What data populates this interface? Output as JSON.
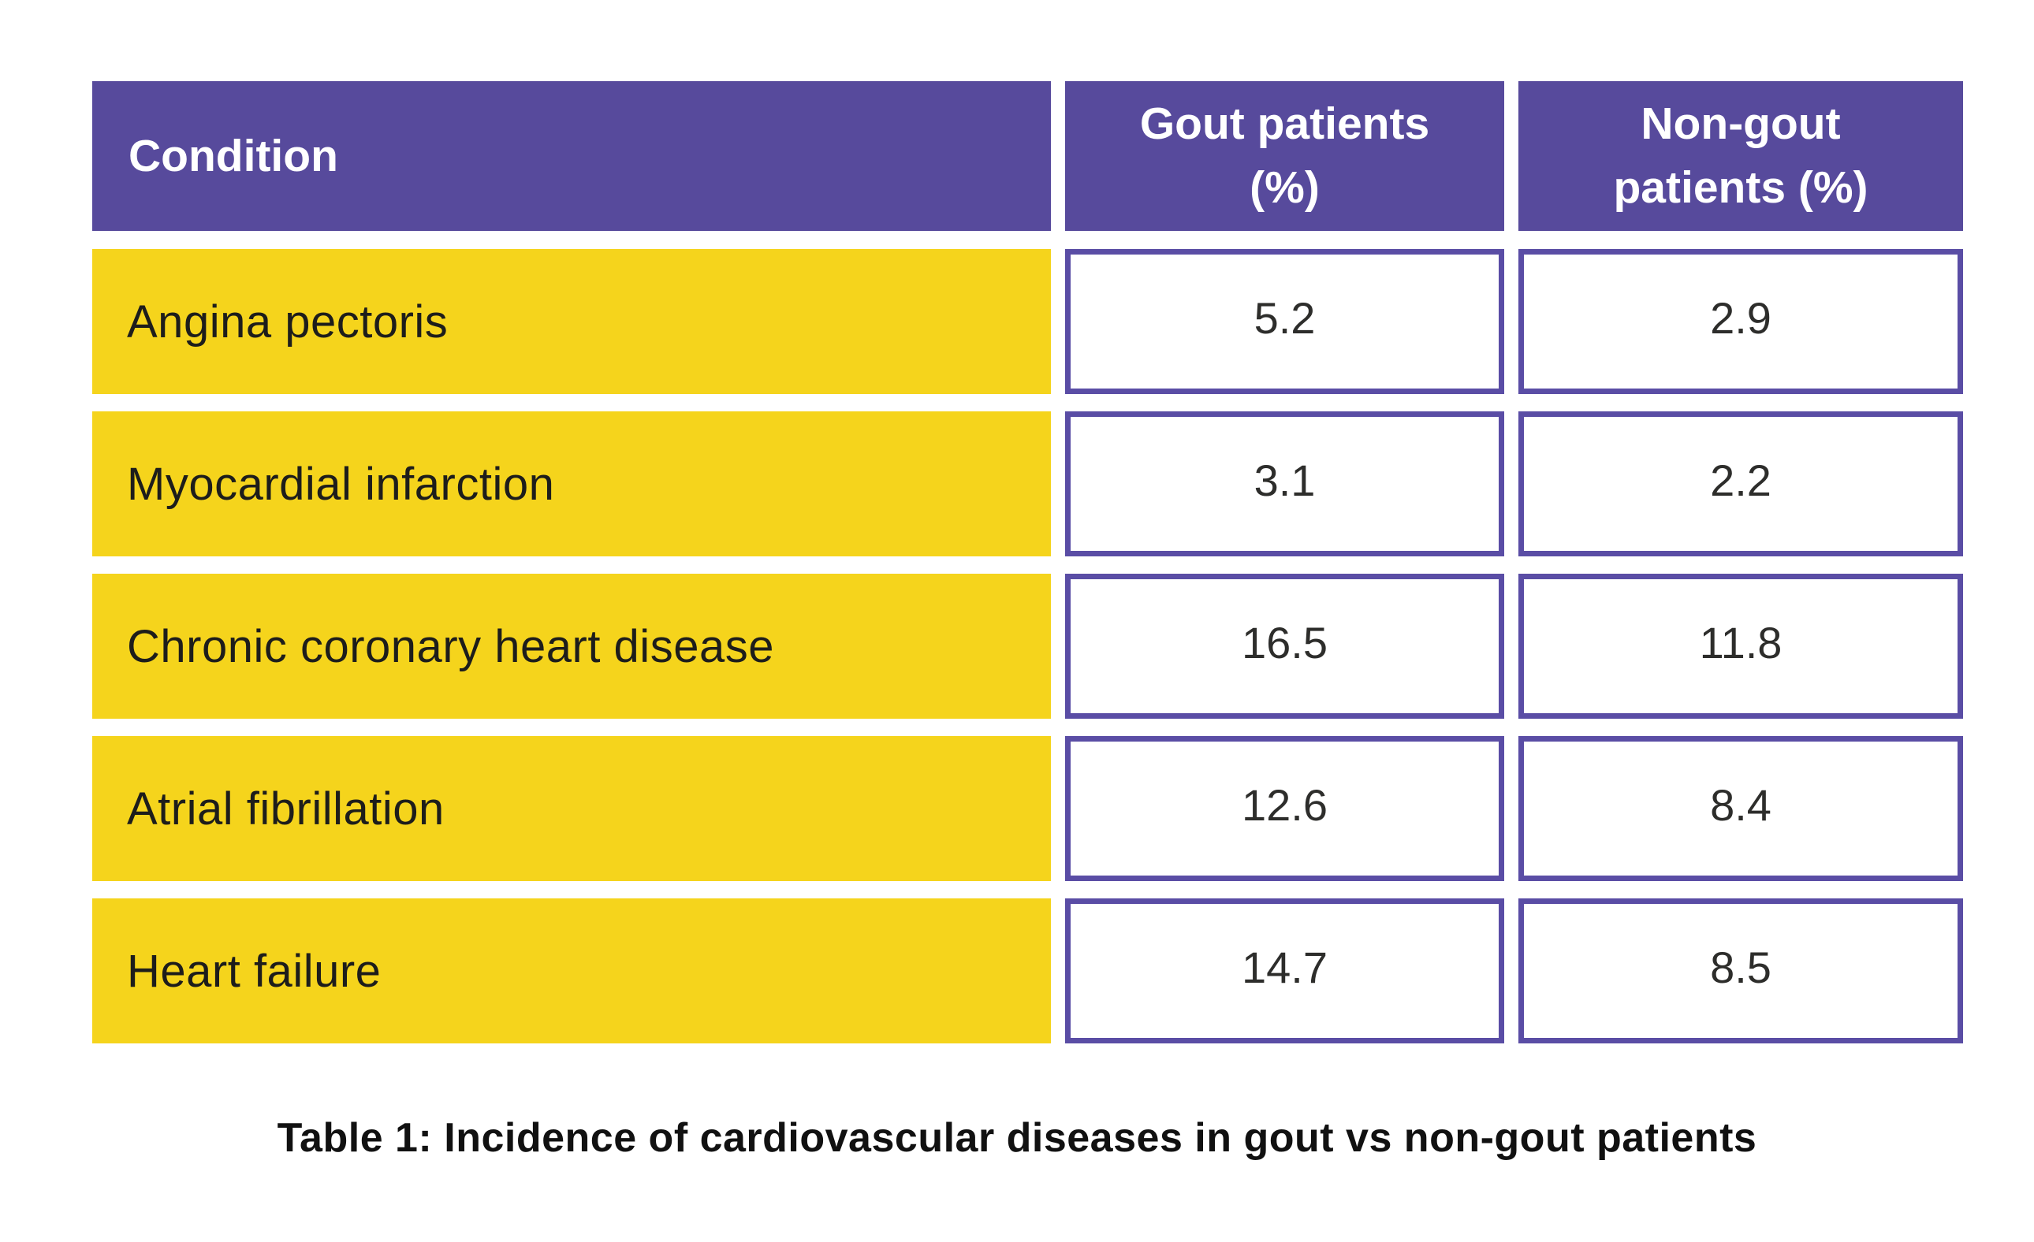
{
  "table": {
    "header": {
      "condition": "Condition",
      "gout_line1": "Gout patients",
      "gout_line2": "(%)",
      "nongout_line1": "Non-gout",
      "nongout_line2": "patients (%)"
    },
    "rows": [
      {
        "condition": "Angina pectoris",
        "gout": "5.2",
        "non_gout": "2.9"
      },
      {
        "condition": "Myocardial infarction",
        "gout": "3.1",
        "non_gout": "2.2"
      },
      {
        "condition": "Chronic coronary heart disease",
        "gout": "16.5",
        "non_gout": "11.8"
      },
      {
        "condition": "Atrial fibrillation",
        "gout": "12.6",
        "non_gout": "8.4"
      },
      {
        "condition": "Heart failure",
        "gout": "14.7",
        "non_gout": "8.5"
      }
    ],
    "caption": "Table 1: Incidence of cardiovascular diseases in gout vs non-gout patients"
  },
  "colors": {
    "header_fill": "#574a9c",
    "row_label_fill": "#f5d41c",
    "value_cell_border": "#5a4da5",
    "header_text": "#ffffff",
    "label_text": "#1d1d1b",
    "value_text": "#2d2d2b",
    "caption_text": "#111111",
    "background": "#ffffff"
  },
  "chart_data": {
    "type": "table",
    "title": "Table 1: Incidence of cardiovascular diseases in gout vs non-gout patients",
    "columns": [
      "Condition",
      "Gout patients (%)",
      "Non-gout patients (%)"
    ],
    "rows": [
      [
        "Angina pectoris",
        5.2,
        2.9
      ],
      [
        "Myocardial infarction",
        3.1,
        2.2
      ],
      [
        "Chronic coronary heart disease",
        16.5,
        11.8
      ],
      [
        "Atrial fibrillation",
        12.6,
        8.4
      ],
      [
        "Heart failure",
        14.7,
        8.5
      ]
    ],
    "legend_position": "none",
    "grid": false
  }
}
